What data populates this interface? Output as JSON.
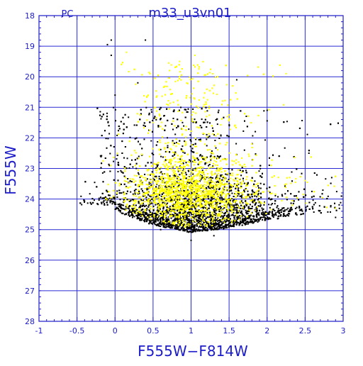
{
  "chart_data": {
    "type": "scatter",
    "title": "m33_u3vn01",
    "corner_label": "PC",
    "xlabel": "F555W−F814W",
    "ylabel": "F555W",
    "xlim": [
      -1,
      3
    ],
    "ylim": [
      28,
      18
    ],
    "y_inverted": true,
    "grid": true,
    "x_ticks": [
      "-1",
      "-0.5",
      "0",
      "0.5",
      "1",
      "1.5",
      "2",
      "2.5",
      "3"
    ],
    "y_ticks": [
      "18",
      "19",
      "20",
      "21",
      "22",
      "23",
      "24",
      "25",
      "26",
      "27",
      "28"
    ],
    "colors": {
      "axis": "#1c1cc8",
      "grid": "#2a2ad4",
      "series_black": "#000000",
      "series_yellow": "#ffff00"
    },
    "series": [
      {
        "color": "#000000",
        "point_count_approx": 5000,
        "description_values": {
          "color_center": 1.0,
          "mag_range": [
            18.8,
            25.4
          ],
          "lower_envelope": [
            [
              0,
              24.4
            ],
            [
              0.5,
              24.85
            ],
            [
              1.0,
              25.1
            ],
            [
              1.5,
              24.95
            ],
            [
              2.0,
              24.7
            ],
            [
              2.5,
              24.5
            ],
            [
              3.0,
              24.4
            ]
          ]
        },
        "points_sample": [
          [
            -0.05,
            18.8
          ],
          [
            -0.1,
            18.95
          ],
          [
            0.4,
            18.8
          ],
          [
            -0.05,
            19.3
          ],
          [
            0.3,
            20.2
          ],
          [
            0.0,
            20.6
          ],
          [
            1.6,
            20.1
          ],
          [
            2.0,
            21.1
          ],
          [
            2.55,
            22.5
          ],
          [
            2.85,
            23.3
          ],
          [
            2.9,
            24.6
          ],
          [
            1.3,
            25.2
          ],
          [
            1.0,
            25.35
          ],
          [
            0.6,
            25.0
          ]
        ]
      },
      {
        "color": "#ffff00",
        "point_count_approx": 4000,
        "description_values": {
          "color_center": 0.95,
          "mag_range": [
            19.2,
            25.0
          ],
          "peak_density_mag": 23.8
        },
        "points_sample": [
          [
            0.15,
            19.2
          ],
          [
            1.05,
            19.3
          ],
          [
            0.85,
            19.5
          ],
          [
            2.25,
            19.9
          ],
          [
            1.35,
            20.0
          ],
          [
            0.5,
            21.5
          ],
          [
            1.8,
            22.2
          ],
          [
            2.5,
            23.4
          ],
          [
            2.9,
            24.3
          ],
          [
            0.2,
            23.6
          ],
          [
            1.2,
            23.9
          ],
          [
            0.9,
            24.4
          ]
        ]
      }
    ]
  }
}
